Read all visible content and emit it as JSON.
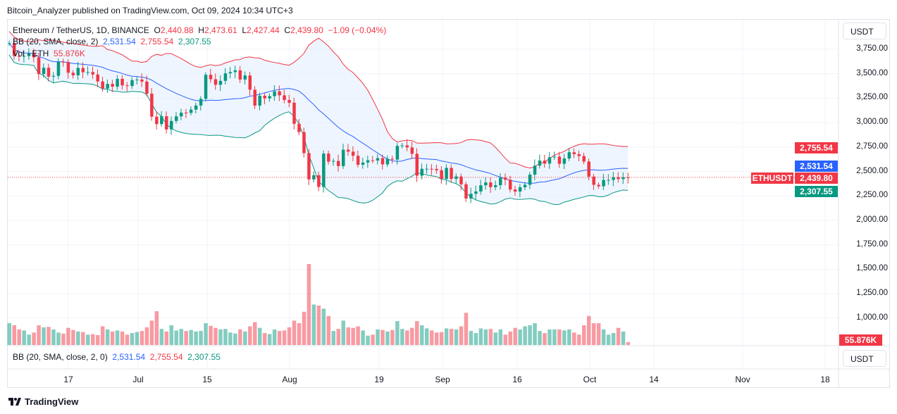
{
  "publisher": "Bitcoin_Analyzer published on TradingView.com, Oct 09, 2024 10:34 UTC+3",
  "legend": {
    "symbol": "Ethereum / TetherUS, 1D, BINANCE",
    "o_label": "O",
    "o": "2,440.88",
    "h_label": "H",
    "h": "2,473.61",
    "l_label": "L",
    "l": "2,427.44",
    "c_label": "C",
    "c": "2,439.80",
    "change": "−1.09 (−0.04%)",
    "bb_label": "BB (20, SMA, close, 2)",
    "bb_basis": "2,531.54",
    "bb_upper": "2,755.54",
    "bb_lower": "2,307.55",
    "vol_label": "Vol · ETH",
    "vol": "55.876K"
  },
  "lower_legend": {
    "bb_label": "BB (20, SMA, close, 2, 0)",
    "basis": "2,531.54",
    "upper": "2,755.54",
    "lower": "2,307.55"
  },
  "price_axis": {
    "unit": "USDT",
    "labels": [
      "3,750.00",
      "3,500.00",
      "3,250.00",
      "3,000.00",
      "2,750.00",
      "2,500.00",
      "2,250.00",
      "2,000.00",
      "1,750.00",
      "1,500.00",
      "1,250.00",
      "1,000.00"
    ]
  },
  "tags": {
    "upper": "2,755.54",
    "basis": "2,531.54",
    "symbol": "ETHUSDT",
    "last": "2,439.80",
    "lower": "2,307.55",
    "volume": "55.876K"
  },
  "lower_unit": "USDT",
  "time_axis": [
    "17",
    "Jul",
    "15",
    "Aug",
    "19",
    "Sep",
    "16",
    "Oct",
    "14",
    "Nov",
    "18"
  ],
  "colors": {
    "up": "#089981",
    "down": "#f23645",
    "basis": "#2962ff",
    "upper": "#f23645",
    "lower": "#089981",
    "band_fill": "#e3effd"
  },
  "brand": "TradingView",
  "chart_data": {
    "type": "candlestick",
    "first_date": "2024-06-05",
    "interval": "1D",
    "first_open": 3810,
    "close": [
      3813,
      3682,
      3678,
      3681,
      3706,
      3667,
      3497,
      3561,
      3470,
      3478,
      3622,
      3620,
      3510,
      3484,
      3559,
      3515,
      3517,
      3492,
      3421,
      3349,
      3396,
      3368,
      3448,
      3381,
      3375,
      3434,
      3440,
      3420,
      3296,
      3061,
      2985,
      3065,
      2930,
      3017,
      3064,
      3102,
      3100,
      3133,
      3175,
      3243,
      3489,
      3444,
      3387,
      3427,
      3504,
      3517,
      3535,
      3441,
      3482,
      3337,
      3174,
      3275,
      3248,
      3271,
      3320,
      3279,
      3231,
      3203,
      2988,
      2903,
      2688,
      2419,
      2462,
      2342,
      2683,
      2601,
      2608,
      2555,
      2723,
      2703,
      2661,
      2569,
      2592,
      2615,
      2612,
      2637,
      2573,
      2630,
      2622,
      2762,
      2767,
      2746,
      2681,
      2457,
      2528,
      2528,
      2526,
      2513,
      2425,
      2537,
      2424,
      2449,
      2369,
      2224,
      2272,
      2296,
      2359,
      2388,
      2340,
      2360,
      2437,
      2416,
      2316,
      2295,
      2339,
      2364,
      2468,
      2560,
      2612,
      2581,
      2646,
      2652,
      2579,
      2633,
      2697,
      2677,
      2658,
      2602,
      2448,
      2364,
      2349,
      2414,
      2414,
      2441,
      2423,
      2440.88,
      2439.8
    ],
    "volume_k": [
      420,
      380,
      300,
      280,
      200,
      240,
      380,
      340,
      350,
      300,
      240,
      220,
      330,
      290,
      260,
      250,
      200,
      210,
      190,
      360,
      300,
      260,
      280,
      260,
      200,
      230,
      250,
      270,
      340,
      470,
      650,
      310,
      260,
      380,
      280,
      310,
      270,
      290,
      260,
      270,
      420,
      370,
      330,
      300,
      310,
      240,
      220,
      300,
      260,
      360,
      440,
      330,
      230,
      210,
      300,
      270,
      280,
      340,
      470,
      420,
      640,
      1560,
      780,
      760,
      700,
      560,
      270,
      310,
      470,
      340,
      330,
      360,
      280,
      180,
      200,
      300,
      290,
      260,
      290,
      460,
      310,
      280,
      330,
      460,
      380,
      320,
      280,
      240,
      250,
      320,
      310,
      300,
      360,
      620,
      270,
      230,
      320,
      300,
      310,
      240,
      300,
      200,
      260,
      330,
      300,
      360,
      380,
      420,
      270,
      230,
      300,
      300,
      300,
      280,
      300,
      240,
      200,
      380,
      560,
      420,
      420,
      300,
      200,
      230,
      330,
      260,
      55.876
    ],
    "ylim": [
      1000,
      3900
    ]
  }
}
